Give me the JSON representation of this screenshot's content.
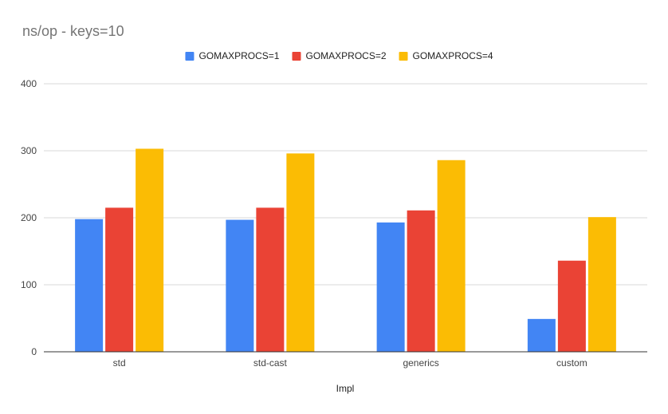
{
  "chart_data": {
    "type": "bar",
    "title": "ns/op - keys=10",
    "xlabel": "Impl",
    "ylabel": "",
    "categories": [
      "std",
      "std-cast",
      "generics",
      "custom"
    ],
    "series": [
      {
        "name": "GOMAXPROCS=1",
        "color": "#4285f4",
        "values": [
          198,
          197,
          193,
          49
        ]
      },
      {
        "name": "GOMAXPROCS=2",
        "color": "#ea4335",
        "values": [
          215,
          215,
          211,
          136
        ]
      },
      {
        "name": "GOMAXPROCS=4",
        "color": "#fbbc04",
        "values": [
          303,
          296,
          286,
          201
        ]
      }
    ],
    "ylim": [
      0,
      400
    ],
    "yticks": [
      0,
      100,
      200,
      300,
      400
    ],
    "grid": true,
    "legend_position": "top"
  }
}
